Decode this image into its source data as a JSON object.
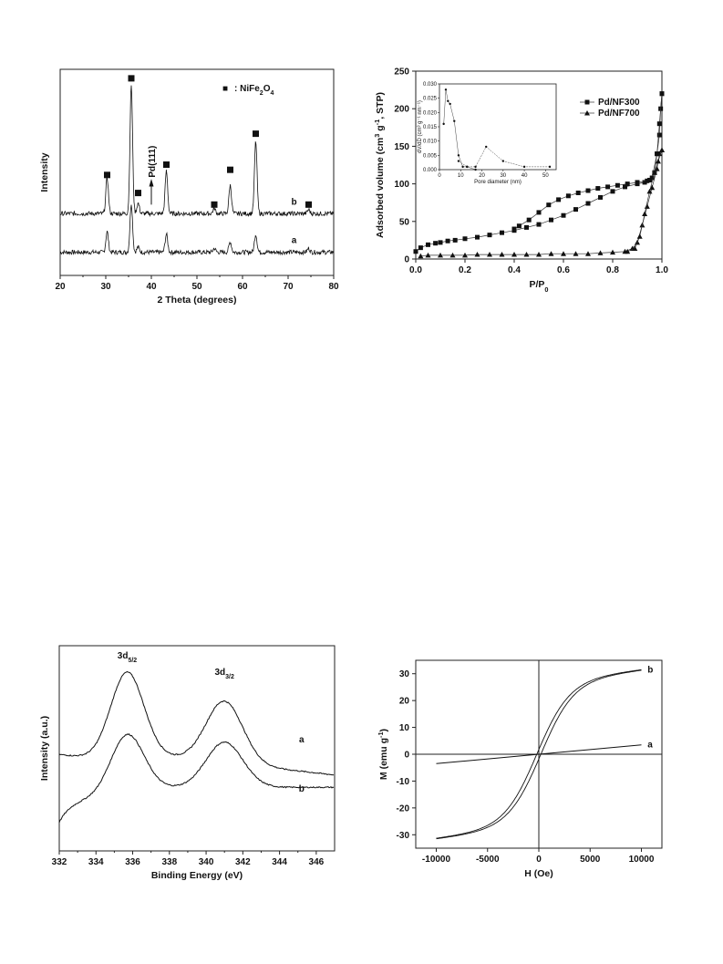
{
  "chart_data": [
    {
      "type": "line",
      "xlabel": "2 Theta (degrees)",
      "ylabel": "Intensity",
      "xlim": [
        20,
        80
      ],
      "xticks": [
        "20",
        "30",
        "40",
        "50",
        "60",
        "70",
        "80"
      ],
      "legend": {
        "marker": "■",
        "label": ": NiFe",
        "sub": "2",
        "label2": "O",
        "sub2": "4"
      },
      "annotation": "Pd(111)",
      "series": [
        {
          "name": "a",
          "label": "a",
          "offset": 0.18,
          "peaks": [
            [
              30.3,
              0.16
            ],
            [
              35.6,
              0.38
            ],
            [
              37.1,
              0.04
            ],
            [
              43.3,
              0.14
            ],
            [
              53.8,
              0.03
            ],
            [
              57.3,
              0.08
            ],
            [
              62.9,
              0.14
            ],
            [
              74.5,
              0.03
            ]
          ]
        },
        {
          "name": "b",
          "label": "b",
          "offset": 0.48,
          "peaks": [
            [
              30.3,
              0.28
            ],
            [
              35.6,
              1.0
            ],
            [
              37.1,
              0.08
            ],
            [
              43.3,
              0.33
            ],
            [
              53.8,
              0.04
            ],
            [
              57.3,
              0.22
            ],
            [
              62.9,
              0.56
            ],
            [
              74.5,
              0.03
            ]
          ],
          "markers": [
            [
              30.3,
              0.78
            ],
            [
              35.6,
              1.53
            ],
            [
              37.1,
              0.64
            ],
            [
              43.3,
              0.86
            ],
            [
              53.8,
              0.55
            ],
            [
              57.3,
              0.82
            ],
            [
              62.9,
              1.1
            ],
            [
              74.5,
              0.55
            ]
          ]
        }
      ]
    },
    {
      "type": "scatter",
      "xlabel": "P/P",
      "xlabel_sub": "0",
      "ylabel": "Adsorbed volume (cm",
      "ylabel_sup": "3",
      "ylabel_mid": " g",
      "ylabel_sup2": "-1",
      "ylabel_end": ", STP)",
      "xlim": [
        0,
        1
      ],
      "ylim": [
        0,
        250
      ],
      "xticks": [
        "0.0",
        "0.2",
        "0.4",
        "0.6",
        "0.8",
        "1.0"
      ],
      "yticks": [
        "0",
        "50",
        "100",
        "150",
        "200",
        "250"
      ],
      "series": [
        {
          "name": "Pd/NF300",
          "marker": "square",
          "adsorption": [
            [
              0.0,
              10
            ],
            [
              0.02,
              15
            ],
            [
              0.05,
              19
            ],
            [
              0.08,
              21
            ],
            [
              0.1,
              22
            ],
            [
              0.13,
              24
            ],
            [
              0.16,
              25
            ],
            [
              0.2,
              27
            ],
            [
              0.25,
              29
            ],
            [
              0.3,
              32
            ],
            [
              0.35,
              35
            ],
            [
              0.4,
              38
            ],
            [
              0.45,
              42
            ],
            [
              0.5,
              46
            ],
            [
              0.55,
              52
            ],
            [
              0.6,
              58
            ],
            [
              0.65,
              66
            ],
            [
              0.7,
              74
            ],
            [
              0.75,
              82
            ],
            [
              0.8,
              90
            ],
            [
              0.85,
              96
            ],
            [
              0.9,
              100
            ],
            [
              0.93,
              102
            ],
            [
              0.95,
              105
            ],
            [
              0.97,
              115
            ],
            [
              0.98,
              140
            ],
            [
              0.99,
              165
            ],
            [
              0.995,
              200
            ],
            [
              1.0,
              220
            ]
          ],
          "desorption": [
            [
              1.0,
              220
            ],
            [
              0.99,
              180
            ],
            [
              0.98,
              140
            ],
            [
              0.96,
              108
            ],
            [
              0.94,
              104
            ],
            [
              0.9,
              102
            ],
            [
              0.86,
              100
            ],
            [
              0.82,
              98
            ],
            [
              0.78,
              96
            ],
            [
              0.74,
              94
            ],
            [
              0.7,
              91
            ],
            [
              0.66,
              88
            ],
            [
              0.62,
              84
            ],
            [
              0.58,
              79
            ],
            [
              0.54,
              72
            ],
            [
              0.5,
              62
            ],
            [
              0.46,
              52
            ],
            [
              0.42,
              44
            ],
            [
              0.4,
              40
            ]
          ]
        },
        {
          "name": "Pd/NF700",
          "marker": "triangle",
          "adsorption": [
            [
              0.02,
              4
            ],
            [
              0.05,
              5
            ],
            [
              0.1,
              5
            ],
            [
              0.15,
              5
            ],
            [
              0.2,
              5
            ],
            [
              0.25,
              6
            ],
            [
              0.3,
              6
            ],
            [
              0.35,
              6
            ],
            [
              0.4,
              6
            ],
            [
              0.45,
              6
            ],
            [
              0.5,
              6
            ],
            [
              0.55,
              7
            ],
            [
              0.6,
              7
            ],
            [
              0.65,
              7
            ],
            [
              0.7,
              7
            ],
            [
              0.75,
              8
            ],
            [
              0.8,
              9
            ],
            [
              0.85,
              10
            ],
            [
              0.88,
              14
            ],
            [
              0.9,
              22
            ],
            [
              0.92,
              45
            ],
            [
              0.94,
              70
            ],
            [
              0.96,
              95
            ],
            [
              0.98,
              120
            ],
            [
              0.99,
              140
            ],
            [
              1.0,
              145
            ]
          ],
          "desorption": [
            [
              1.0,
              145
            ],
            [
              0.985,
              130
            ],
            [
              0.97,
              115
            ],
            [
              0.95,
              90
            ],
            [
              0.93,
              60
            ],
            [
              0.91,
              30
            ],
            [
              0.89,
              14
            ],
            [
              0.86,
              10
            ]
          ]
        }
      ],
      "inset": {
        "xlabel": "Pore diameter (nm)",
        "ylabel": "dV/dD (cm³ g⁻¹ nm⁻¹)",
        "xlim": [
          0,
          55
        ],
        "ylim": [
          0,
          0.03
        ],
        "xticks": [
          "0",
          "10",
          "20",
          "30",
          "40",
          "50"
        ],
        "yticks": [
          "0.000",
          "0.005",
          "0.010",
          "0.015",
          "0.020",
          "0.025",
          "0.030"
        ],
        "series": [
          {
            "name": "Pd/NF300",
            "points": [
              [
                2,
                0.016
              ],
              [
                3,
                0.028
              ],
              [
                4,
                0.024
              ],
              [
                5,
                0.023
              ],
              [
                7,
                0.017
              ],
              [
                9,
                0.005
              ],
              [
                11,
                0.001
              ],
              [
                13,
                0.001
              ],
              [
                17,
                0.0
              ]
            ]
          },
          {
            "name": "Pd/NF700",
            "points": [
              [
                9,
                0.003
              ],
              [
                13,
                0.001
              ],
              [
                17,
                0.001
              ],
              [
                22,
                0.008
              ],
              [
                30,
                0.003
              ],
              [
                40,
                0.001
              ],
              [
                52,
                0.001
              ]
            ]
          }
        ]
      }
    },
    {
      "type": "line",
      "xlabel": "Binding Energy (eV)",
      "ylabel": "Intensity (a.u.)",
      "xlim": [
        332,
        347
      ],
      "xticks": [
        "332",
        "334",
        "336",
        "338",
        "340",
        "342",
        "344",
        "346"
      ],
      "peak_labels": [
        {
          "x": 335.7,
          "text": "3d",
          "sub": "5/2"
        },
        {
          "x": 341.0,
          "text": "3d",
          "sub": "3/2"
        }
      ],
      "series": [
        {
          "name": "a",
          "label": "a",
          "offset": 0.47,
          "amp1": 0.43,
          "amp2": 0.3,
          "slope": -0.01
        },
        {
          "name": "b",
          "label": "b",
          "offset": 0.26,
          "amp1": 0.3,
          "amp2": 0.22,
          "slope": 0.0
        }
      ]
    },
    {
      "type": "line",
      "xlabel": "H (Oe)",
      "ylabel": "M  (emu g",
      "ylabel_sup": "-1",
      "ylabel_end": ")",
      "xlim": [
        -12000,
        12000
      ],
      "ylim": [
        -35,
        35
      ],
      "xticks": [
        "-10000",
        "-5000",
        "0",
        "5000",
        "10000"
      ],
      "yticks": [
        "-30",
        "-20",
        "-10",
        "0",
        "10",
        "20",
        "30"
      ],
      "series": [
        {
          "name": "a",
          "label": "a",
          "ms": 3.5,
          "linear": true
        },
        {
          "name": "b",
          "label": "b",
          "ms": 31.5,
          "coercivity": 200
        }
      ]
    }
  ]
}
